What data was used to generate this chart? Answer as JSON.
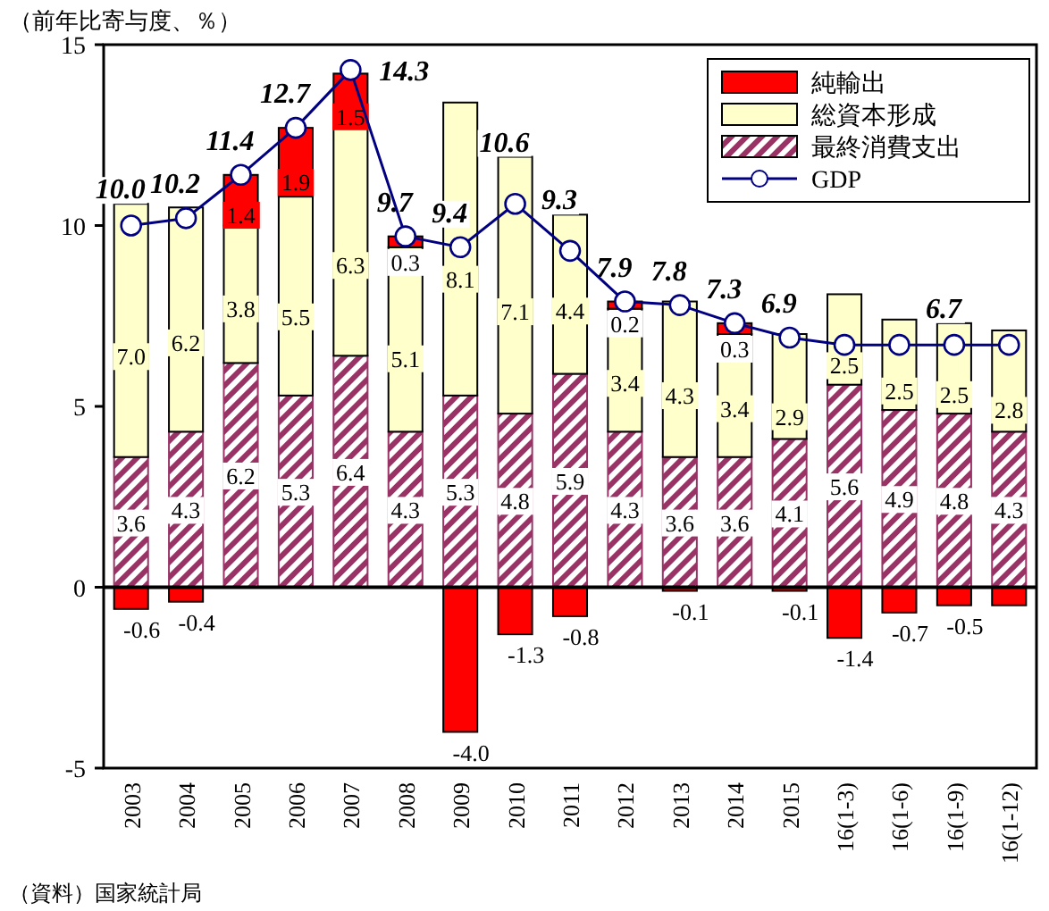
{
  "chart_data": {
    "type": "bar",
    "stacked": true,
    "ylabel": "（前年比寄与度、％）",
    "annotations": [
      "（資料）国家統計局"
    ],
    "categories": [
      "2003",
      "2004",
      "2005",
      "2006",
      "2007",
      "2008",
      "2009",
      "2010",
      "2011",
      "2012",
      "2013",
      "2014",
      "2015",
      "16(1-3)",
      "16(1-6)",
      "16(1-9)",
      "16(1-12)"
    ],
    "ylim": [
      -5,
      15
    ],
    "yticks": [
      -5,
      0,
      5,
      10,
      15
    ],
    "legend": "top right",
    "series": [
      {
        "name": "最終消費支出",
        "color": "#993366",
        "values": [
          3.6,
          4.3,
          6.2,
          5.3,
          6.4,
          4.3,
          5.3,
          4.8,
          5.9,
          4.3,
          3.6,
          3.6,
          4.1,
          5.6,
          4.9,
          4.8,
          4.3
        ],
        "value_labels": [
          "3.6",
          "4.3",
          "6.2",
          "5.3",
          "6.4",
          "4.3",
          "5.3",
          "4.8",
          "5.9",
          "4.3",
          "3.6",
          "3.6",
          "4.1",
          "5.6",
          "4.9",
          "4.8",
          "4.3"
        ]
      },
      {
        "name": "総資本形成",
        "color": "#ffffcc",
        "values": [
          7.0,
          6.2,
          3.8,
          5.5,
          6.3,
          5.1,
          8.1,
          7.1,
          4.4,
          3.4,
          4.3,
          3.4,
          2.9,
          2.5,
          2.5,
          2.5,
          2.8
        ],
        "value_labels": [
          "7.0",
          "6.2",
          "3.8",
          "5.5",
          "6.3",
          "5.1",
          "8.1",
          "7.1",
          "4.4",
          "3.4",
          "4.3",
          "3.4",
          "2.9",
          "2.5",
          "2.5",
          "2.5",
          "2.8"
        ]
      },
      {
        "name": "純輸出",
        "color": "#ff0000",
        "values": [
          -0.6,
          -0.4,
          1.4,
          1.9,
          1.5,
          0.3,
          -4.0,
          -1.3,
          -0.8,
          0.2,
          -0.1,
          0.3,
          -0.1,
          -1.4,
          -0.7,
          -0.5,
          -0.5
        ],
        "value_labels": [
          "-0.6",
          "-0.4",
          "1.4",
          "1.9",
          "1.5",
          "0.3",
          "-4.0",
          "-1.3",
          "-0.8",
          "0.2",
          "-0.1",
          "0.3",
          "-0.1",
          "-1.4",
          "-0.7",
          "-0.5",
          null
        ]
      },
      {
        "name": "GDP",
        "type": "line",
        "color": "#000080",
        "marker": "circle",
        "values": [
          10.0,
          10.2,
          11.4,
          12.7,
          14.3,
          9.7,
          9.4,
          10.6,
          9.3,
          7.9,
          7.8,
          7.3,
          6.9,
          6.7,
          6.7,
          6.7,
          6.7
        ],
        "value_labels": [
          "10.0",
          "10.2",
          "11.4",
          "12.7",
          "14.3",
          "9.7",
          "9.4",
          "10.6",
          "9.3",
          "7.9",
          "7.8",
          "7.3",
          "6.9",
          null,
          null,
          "6.7",
          null
        ]
      }
    ]
  }
}
